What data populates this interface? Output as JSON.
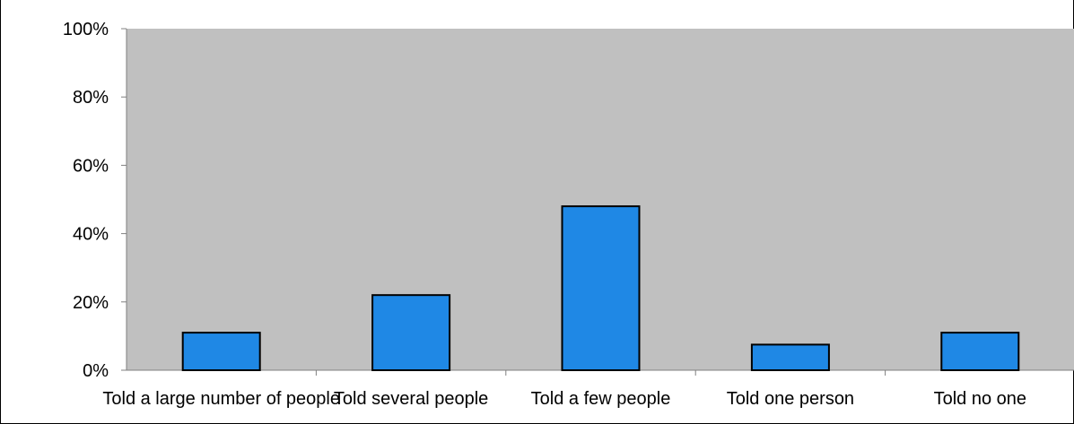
{
  "chart_data": {
    "type": "bar",
    "title": "",
    "xlabel": "",
    "ylabel": "",
    "categories": [
      "Told a large number of people",
      "Told several people",
      "Told a few people",
      "Told one person",
      "Told no one"
    ],
    "values": [
      11,
      22,
      48,
      7.5,
      11
    ],
    "ylim": [
      0,
      100
    ],
    "yticks": [
      "0%",
      "20%",
      "40%",
      "60%",
      "80%",
      "100%"
    ],
    "ytick_values": [
      0,
      20,
      40,
      60,
      80,
      100
    ],
    "grid": false,
    "legend": "none",
    "colors": {
      "bar_fill": "#1f88e5",
      "bar_stroke": "#000000",
      "plot_background": "#c0c0c0",
      "axis": "#808080"
    }
  }
}
